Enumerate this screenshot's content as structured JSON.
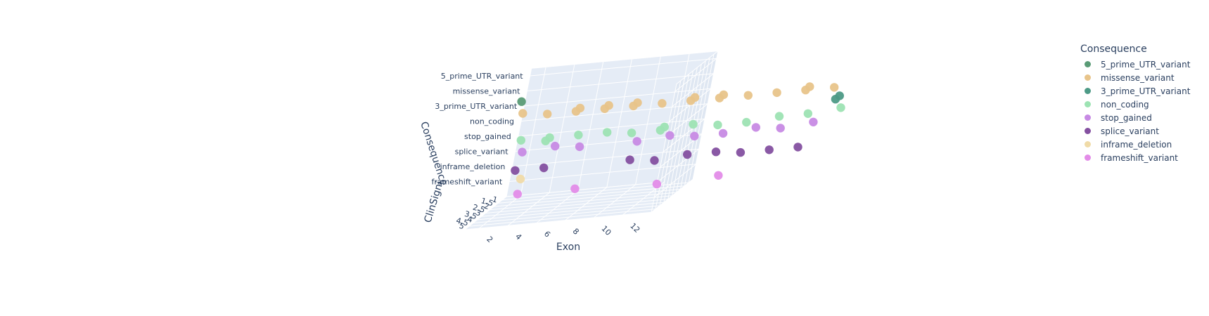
{
  "chart_data": {
    "type": "scatter",
    "subtype": "3d",
    "axes": {
      "x": {
        "title": "Exon",
        "ticks": [
          "2",
          "4",
          "6",
          "8",
          "10",
          "12"
        ]
      },
      "y": {
        "title": "Consequence",
        "ticks": [
          "5_prime_UTR_variant",
          "missense_variant",
          "3_prime_UTR_variant",
          "non_coding",
          "stop_gained",
          "splice_variant",
          "inframe_deletion",
          "frameshift_variant"
        ]
      },
      "z": {
        "title": "ClinSigni",
        "ticks": [
          "1",
          "1.5",
          "2",
          "2.5",
          "3",
          "3.5",
          "4",
          "4.5",
          "5"
        ]
      }
    },
    "legend": {
      "title": "Consequence",
      "placement": "right",
      "entries": [
        {
          "name": "5_prime_UTR_variant",
          "color": "#5a9b76"
        },
        {
          "name": "missense_variant",
          "color": "#e8c48a"
        },
        {
          "name": "3_prime_UTR_variant",
          "color": "#4d9a86"
        },
        {
          "name": "non_coding",
          "color": "#9de3b3"
        },
        {
          "name": "stop_gained",
          "color": "#c78ae4"
        },
        {
          "name": "splice_variant",
          "color": "#8450a0"
        },
        {
          "name": "inframe_deletion",
          "color": "#f0dba8"
        },
        {
          "name": "frameshift_variant",
          "color": "#e38ce8"
        }
      ]
    },
    "series": [
      {
        "name": "5_prime_UTR_variant",
        "points": [
          [
            1,
            5
          ]
        ]
      },
      {
        "name": "missense_variant",
        "points": [
          [
            1,
            4
          ],
          [
            2,
            5
          ],
          [
            3,
            5
          ],
          [
            3,
            4
          ],
          [
            4,
            5
          ],
          [
            4,
            4
          ],
          [
            5,
            5
          ],
          [
            5,
            4
          ],
          [
            6,
            5
          ],
          [
            7,
            5
          ],
          [
            7,
            4
          ],
          [
            8,
            5
          ],
          [
            8,
            4
          ],
          [
            9,
            5
          ],
          [
            10,
            5
          ],
          [
            11,
            5
          ],
          [
            11,
            4
          ],
          [
            12,
            5
          ]
        ]
      },
      {
        "name": "3_prime_UTR_variant",
        "points": [
          [
            12,
            4
          ],
          [
            12,
            3
          ]
        ]
      },
      {
        "name": "non_coding",
        "points": [
          [
            1,
            3
          ],
          [
            2,
            4
          ],
          [
            2,
            3
          ],
          [
            3,
            3
          ],
          [
            4,
            3
          ],
          [
            5,
            4
          ],
          [
            6,
            4
          ],
          [
            6,
            3
          ],
          [
            7,
            3
          ],
          [
            8,
            4
          ],
          [
            9,
            4
          ],
          [
            10,
            3
          ],
          [
            11,
            3
          ],
          [
            12,
            2
          ]
        ]
      },
      {
        "name": "stop_gained",
        "points": [
          [
            1,
            2
          ],
          [
            2,
            1
          ],
          [
            3,
            2
          ],
          [
            5,
            2
          ],
          [
            6,
            1
          ],
          [
            7,
            2
          ],
          [
            8,
            2
          ],
          [
            9,
            1
          ],
          [
            10,
            2
          ],
          [
            11,
            1
          ]
        ]
      },
      {
        "name": "splice_variant",
        "points": [
          [
            1,
            3
          ],
          [
            2,
            3
          ],
          [
            5,
            3
          ],
          [
            6,
            4
          ],
          [
            7,
            3
          ],
          [
            8,
            3
          ],
          [
            9,
            4
          ],
          [
            10,
            4
          ],
          [
            11,
            4
          ]
        ]
      },
      {
        "name": "inframe_deletion",
        "points": [
          [
            1,
            1
          ]
        ]
      },
      {
        "name": "frameshift_variant",
        "points": [
          [
            1,
            1
          ],
          [
            3,
            1
          ],
          [
            6,
            2
          ],
          [
            8,
            1
          ]
        ]
      }
    ]
  }
}
